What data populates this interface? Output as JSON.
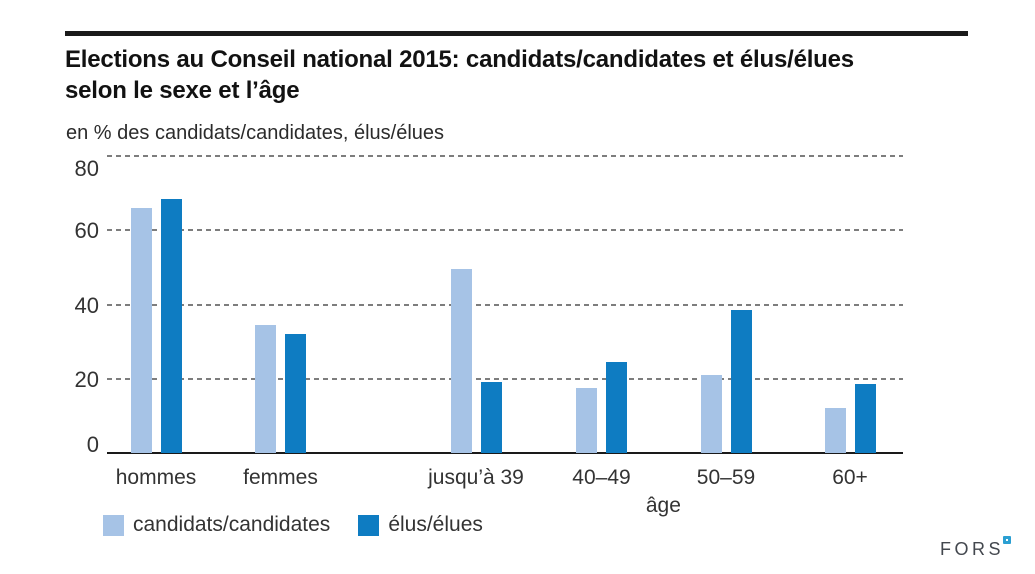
{
  "header": {
    "title": "Elections au Conseil national 2015: candidats/candidates et élus/élues selon le sexe et l’âge",
    "title_lines": [
      "Elections au Conseil national 2015: candidats/candidates et élus/élues",
      "selon le sexe et l’âge"
    ],
    "unit_label": "en % des candidats/candidates, élus/élues"
  },
  "chart_data": {
    "type": "bar",
    "title": "Elections au Conseil national 2015: candidats/candidates et élus/élues selon le sexe et l’âge",
    "unit": "en % des candidats/candidates, élus/élues",
    "categories": [
      "hommes",
      "femmes",
      "jusqu’à 39",
      "40–49",
      "50–59",
      "60+"
    ],
    "category_groups": {
      "sexe": [
        "hommes",
        "femmes"
      ],
      "âge": [
        "jusqu’à 39",
        "40–49",
        "50–59",
        "60+"
      ]
    },
    "group_axis_label": "âge",
    "series": [
      {
        "name": "candidats/candidates",
        "color": "#a6c3e6",
        "values": [
          66,
          34.5,
          49.5,
          17.5,
          21,
          12
        ]
      },
      {
        "name": "élus/élues",
        "color": "#0e7cc2",
        "values": [
          68.5,
          32,
          19,
          24.5,
          38.5,
          18.5
        ]
      }
    ],
    "ylim": [
      0,
      80
    ],
    "yticks": [
      0,
      20,
      40,
      60,
      80
    ],
    "grid": "horizontal dashed",
    "legend_position": "bottom-left"
  },
  "colors": {
    "series_light_blue": "#a6c3e6",
    "series_dark_blue": "#0e7cc2",
    "gridline_gray": "#7d7d7d",
    "axis_black": "#1a1a1a"
  },
  "footer": {
    "logo_text": "FORS"
  }
}
